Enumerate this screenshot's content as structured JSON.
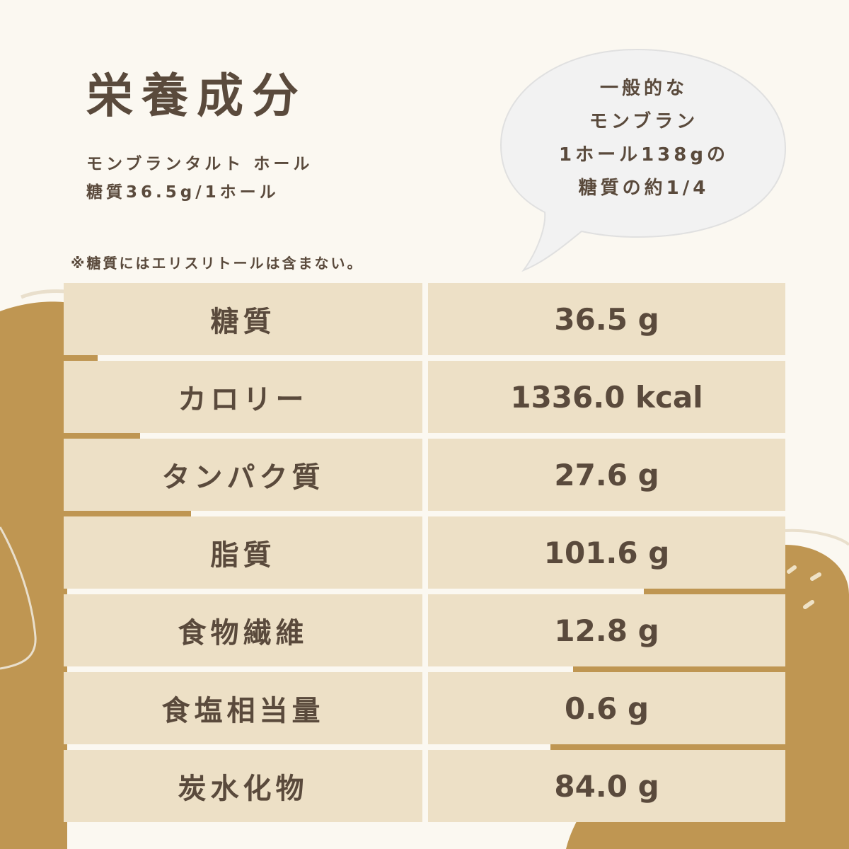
{
  "title": "栄養成分",
  "subtitle_line1": "モンブランタルト ホール",
  "subtitle_line2": "糖質36.5g/1ホール",
  "note": "※糖質にはエリスリトールは含まない。",
  "bubble": [
    "一般的な",
    "モンブラン",
    "1ホール138gの",
    "糖質の約1/4"
  ],
  "colors": {
    "background": "#fbf8f1",
    "cell": "#ede0c6",
    "accent": "#bf9652",
    "text": "#5a4a3c"
  },
  "nutrients": [
    {
      "label": "糖質",
      "value": "36.5 g"
    },
    {
      "label": "カロリー",
      "value": "1336.0 kcal"
    },
    {
      "label": "タンパク質",
      "value": "27.6 g"
    },
    {
      "label": "脂質",
      "value": "101.6 g"
    },
    {
      "label": "食物繊維",
      "value": "12.8 g"
    },
    {
      "label": "食塩相当量",
      "value": "0.6 g"
    },
    {
      "label": "炭水化物",
      "value": "84.0 g"
    }
  ]
}
